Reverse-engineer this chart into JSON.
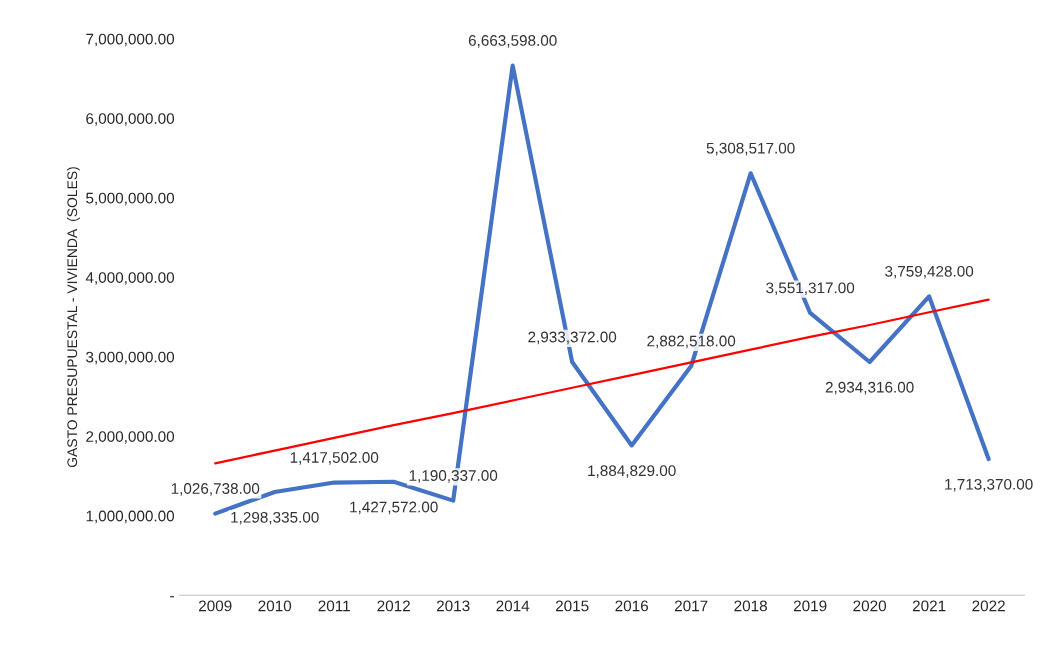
{
  "chart_data": {
    "type": "line",
    "ylabel": "GASTO PRESUPUESTAL - VIVIENDA  (SOLES)",
    "categories": [
      "2009",
      "2010",
      "2011",
      "2012",
      "2013",
      "2014",
      "2015",
      "2016",
      "2017",
      "2018",
      "2019",
      "2020",
      "2021",
      "2022"
    ],
    "series": [
      {
        "color": "#4472c4",
        "values": [
          1026738,
          1298335,
          1417502,
          1427572,
          1190337,
          6663598,
          2933372,
          1884829,
          2882518,
          5308517,
          3551317,
          2934316,
          3759428,
          1713370
        ],
        "value_labels": [
          "1,026,738.00",
          "1,298,335.00",
          "1,417,502.00",
          "1,427,572.00",
          "1,190,337.00",
          "6,663,598.00",
          "2,933,372.00",
          "1,884,829.00",
          "2,882,518.00",
          "5,308,517.00",
          "3,551,317.00",
          "2,934,316.00",
          "3,759,428.00",
          "1,713,370.00"
        ]
      },
      {
        "type": "line",
        "color": "#ff0000",
        "values": [
          1660000,
          1820000,
          1980000,
          2140000,
          2290000,
          2450000,
          2610000,
          2770000,
          2930000,
          3090000,
          3250000,
          3400000,
          3560000,
          3720000
        ]
      }
    ],
    "ylim": [
      0,
      7000000
    ],
    "yticks": [
      {
        "value": 0,
        "label": "-"
      },
      {
        "value": 1000000,
        "label": "1,000,000.00"
      },
      {
        "value": 2000000,
        "label": "2,000,000.00"
      },
      {
        "value": 3000000,
        "label": "3,000,000.00"
      },
      {
        "value": 4000000,
        "label": "4,000,000.00"
      },
      {
        "value": 5000000,
        "label": "5,000,000.00"
      },
      {
        "value": 6000000,
        "label": "6,000,000.00"
      },
      {
        "value": 7000000,
        "label": "7,000,000.00"
      }
    ],
    "grid": false,
    "legend": false,
    "marker": "none",
    "line_style": "solid"
  }
}
